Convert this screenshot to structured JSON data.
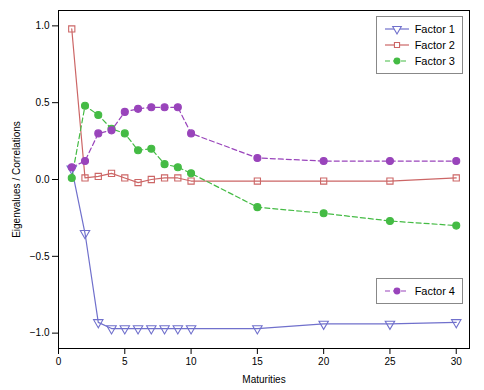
{
  "chart_data": {
    "type": "line",
    "x": [
      1,
      2,
      3,
      4,
      5,
      6,
      7,
      8,
      9,
      10,
      15,
      20,
      25,
      30
    ],
    "xlabel": "Maturities",
    "ylabel": "Eigenvalues / Correlations",
    "xlim": [
      0,
      31
    ],
    "ylim": [
      -1.1,
      1.1
    ],
    "xticks": [
      0,
      5,
      10,
      15,
      20,
      25,
      30
    ],
    "yticks": [
      {
        "value": -1.0,
        "label": "−1.0"
      },
      {
        "value": -0.5,
        "label": "−0.5"
      },
      {
        "value": 0.0,
        "label": "0.0"
      },
      {
        "value": 0.5,
        "label": "0.5"
      },
      {
        "value": 1.0,
        "label": "1.0"
      }
    ],
    "grid": false,
    "series": [
      {
        "name": "Factor 1",
        "color": "#7070cc",
        "marker": "open_triangle_down",
        "line_style": "solid",
        "legend": "upper right",
        "values": [
          0.07,
          -0.35,
          -0.93,
          -0.97,
          -0.97,
          -0.97,
          -0.97,
          -0.97,
          -0.97,
          -0.97,
          -0.97,
          -0.94,
          -0.94,
          -0.93
        ]
      },
      {
        "name": "Factor 2",
        "color": "#cc6666",
        "marker": "open_square",
        "line_style": "solid",
        "legend": "upper right",
        "values": [
          0.98,
          0.01,
          0.02,
          0.04,
          0.01,
          -0.02,
          0.0,
          0.01,
          0.01,
          -0.01,
          -0.01,
          -0.01,
          -0.01,
          0.01
        ]
      },
      {
        "name": "Factor 3",
        "color": "#44bb44",
        "marker": "circle",
        "line_style": "dashed",
        "legend": "upper right",
        "values": [
          0.01,
          0.48,
          0.42,
          0.33,
          0.3,
          0.19,
          0.2,
          0.1,
          0.08,
          0.04,
          -0.18,
          -0.22,
          -0.27,
          -0.3
        ]
      },
      {
        "name": "Factor 4",
        "color": "#9944bb",
        "marker": "circle",
        "line_style": "dashed",
        "legend": "lower right",
        "values": [
          0.08,
          0.12,
          0.3,
          0.32,
          0.44,
          0.46,
          0.47,
          0.47,
          0.47,
          0.3,
          0.14,
          0.12,
          0.12,
          0.12
        ]
      }
    ]
  }
}
